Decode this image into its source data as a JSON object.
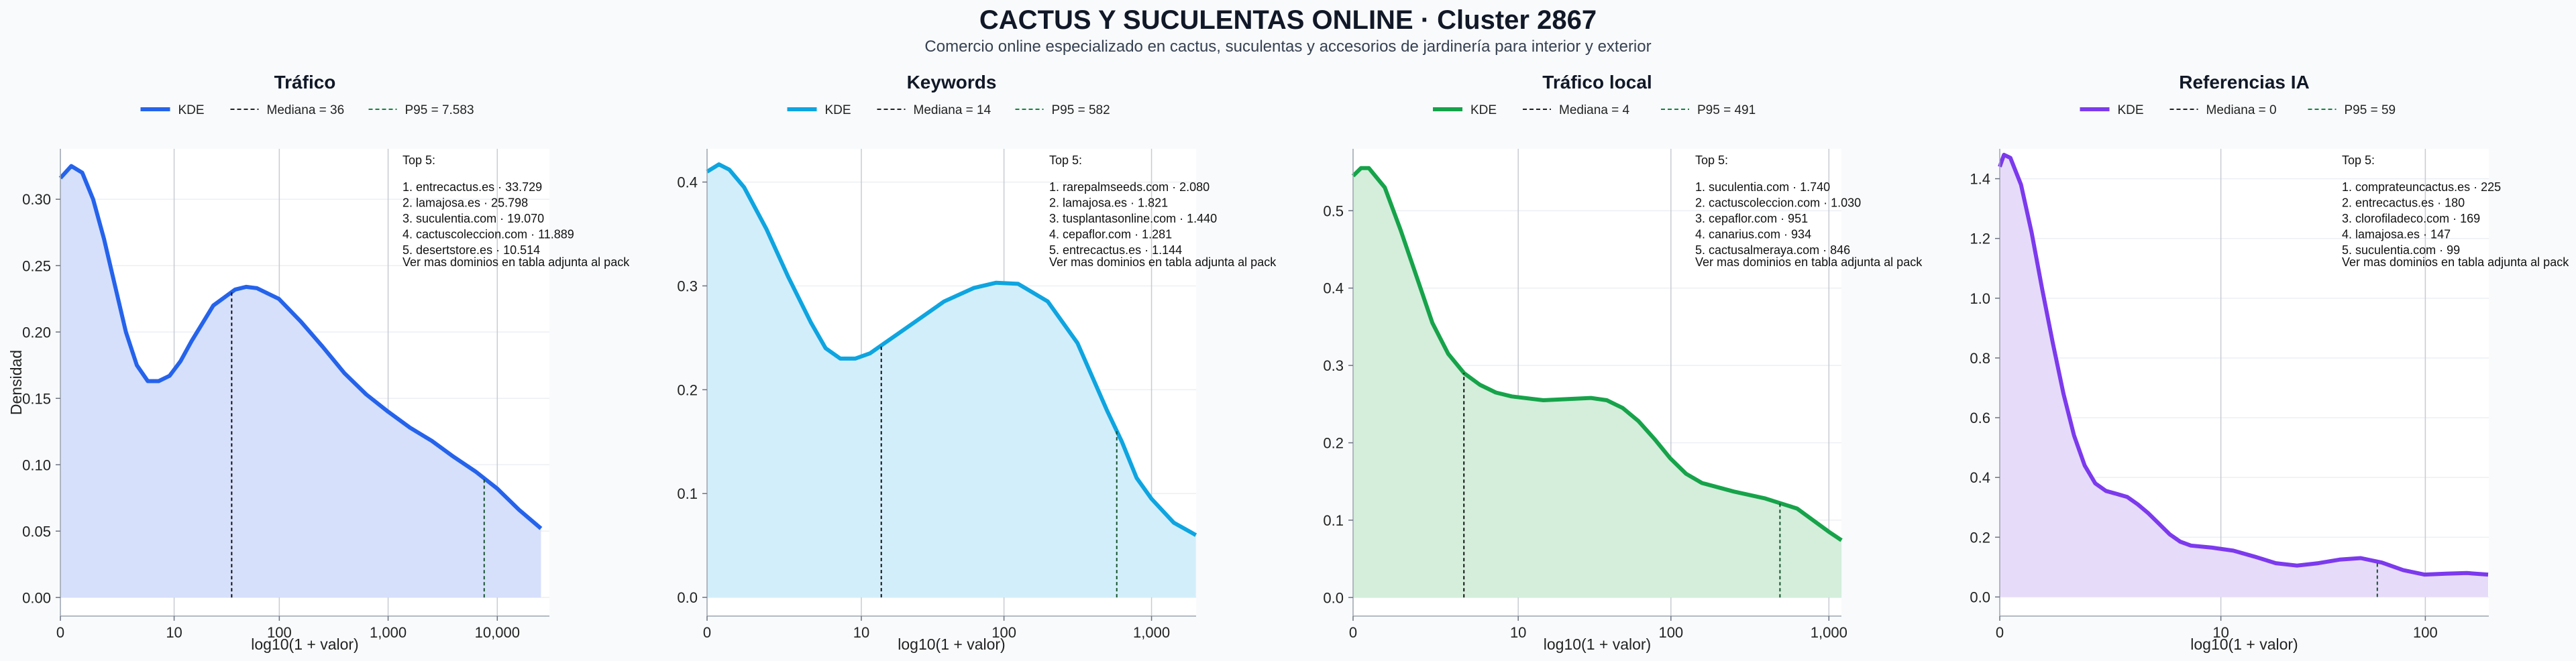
{
  "title": "CACTUS Y SUCULENTAS ONLINE · Cluster 2867",
  "subtitle": "Comercio online especializado en cactus, suculentas y accesorios de jardinería para interior y exterior",
  "y_axis_label": "Densidad",
  "chart_data": [
    {
      "type": "area",
      "title": "Tráfico",
      "xlabel": "log10(1 + valor)",
      "ylabel": "Densidad",
      "color": "#2563eb",
      "fill": "#d6e0fb",
      "legend": {
        "kde": "KDE",
        "median": "Mediana = 36",
        "p95": "P95 = 7.583"
      },
      "median_x": 36,
      "p95_x": 7583,
      "xmax": 30000,
      "x_ticks": [
        {
          "v": 0,
          "label": "0"
        },
        {
          "v": 10,
          "label": "10"
        },
        {
          "v": 100,
          "label": "100"
        },
        {
          "v": 1000,
          "label": "1,000"
        },
        {
          "v": 10000,
          "label": "10,000"
        }
      ],
      "ylim": [
        -0.014,
        0.338
      ],
      "y_ticks": [
        0,
        0.05,
        0.1,
        0.15,
        0.2,
        0.25,
        0.3
      ],
      "y_tick_labels": [
        "0.00",
        "0.05",
        "0.10",
        "0.15",
        "0.20",
        "0.25",
        "0.30"
      ],
      "points": [
        [
          0,
          0.316
        ],
        [
          0.1,
          0.325
        ],
        [
          0.2,
          0.32
        ],
        [
          0.3,
          0.3
        ],
        [
          0.4,
          0.27
        ],
        [
          0.5,
          0.235
        ],
        [
          0.6,
          0.2
        ],
        [
          0.7,
          0.175
        ],
        [
          0.8,
          0.163
        ],
        [
          0.9,
          0.163
        ],
        [
          1.0,
          0.167
        ],
        [
          1.1,
          0.178
        ],
        [
          1.2,
          0.193
        ],
        [
          1.4,
          0.22
        ],
        [
          1.6,
          0.232
        ],
        [
          1.7,
          0.234
        ],
        [
          1.8,
          0.233
        ],
        [
          2.0,
          0.225
        ],
        [
          2.2,
          0.208
        ],
        [
          2.4,
          0.189
        ],
        [
          2.6,
          0.169
        ],
        [
          2.8,
          0.153
        ],
        [
          3.0,
          0.14
        ],
        [
          3.2,
          0.128
        ],
        [
          3.4,
          0.118
        ],
        [
          3.6,
          0.106
        ],
        [
          3.8,
          0.095
        ],
        [
          4.0,
          0.082
        ],
        [
          4.2,
          0.066
        ],
        [
          4.4,
          0.052
        ]
      ],
      "top5_heading": "Top 5:",
      "top5": [
        "1. entrecactus.es · 33.729",
        "2. lamajosa.es · 25.798",
        "3. suculentia.com · 19.070",
        "4. cactuscoleccion.com · 11.889",
        "5. desertstore.es · 10.514"
      ],
      "note": "Ver mas dominios en tabla adjunta al pack"
    },
    {
      "type": "area",
      "title": "Keywords",
      "xlabel": "log10(1 + valor)",
      "ylabel": "",
      "color": "#0ea5e0",
      "fill": "#d3eefb",
      "legend": {
        "kde": "KDE",
        "median": "Mediana = 14",
        "p95": "P95 = 582"
      },
      "median_x": 14,
      "p95_x": 582,
      "xmax": 2000,
      "x_ticks": [
        {
          "v": 0,
          "label": "0"
        },
        {
          "v": 10,
          "label": "10"
        },
        {
          "v": 100,
          "label": "100"
        },
        {
          "v": 1000,
          "label": "1,000"
        }
      ],
      "ylim": [
        -0.018,
        0.432
      ],
      "y_ticks": [
        0,
        0.1,
        0.2,
        0.3,
        0.4
      ],
      "y_tick_labels": [
        "0.0",
        "0.1",
        "0.2",
        "0.3",
        "0.4"
      ],
      "points": [
        [
          0,
          0.41
        ],
        [
          0.08,
          0.417
        ],
        [
          0.15,
          0.412
        ],
        [
          0.25,
          0.395
        ],
        [
          0.4,
          0.355
        ],
        [
          0.55,
          0.308
        ],
        [
          0.7,
          0.265
        ],
        [
          0.8,
          0.24
        ],
        [
          0.9,
          0.23
        ],
        [
          1.0,
          0.23
        ],
        [
          1.1,
          0.235
        ],
        [
          1.2,
          0.245
        ],
        [
          1.4,
          0.265
        ],
        [
          1.6,
          0.285
        ],
        [
          1.8,
          0.298
        ],
        [
          1.95,
          0.303
        ],
        [
          2.1,
          0.302
        ],
        [
          2.3,
          0.285
        ],
        [
          2.5,
          0.245
        ],
        [
          2.7,
          0.18
        ],
        [
          2.8,
          0.15
        ],
        [
          2.9,
          0.115
        ],
        [
          3.0,
          0.095
        ],
        [
          3.15,
          0.072
        ],
        [
          3.3,
          0.06
        ]
      ],
      "top5_heading": "Top 5:",
      "top5": [
        "1. rarepalmseeds.com · 2.080",
        "2. lamajosa.es · 1.821",
        "3. tusplantasonline.com · 1.440",
        "4. cepaflor.com · 1.281",
        "5. entrecactus.es · 1.144"
      ],
      "note": "Ver mas dominios en tabla adjunta al pack"
    },
    {
      "type": "area",
      "title": "Tráfico local",
      "xlabel": "log10(1 + valor)",
      "ylabel": "",
      "color": "#16a34a",
      "fill": "#d4eedb",
      "legend": {
        "kde": "KDE",
        "median": "Mediana = 4",
        "p95": "P95 = 491"
      },
      "median_x": 4,
      "p95_x": 491,
      "xmax": 1200,
      "x_ticks": [
        {
          "v": 0,
          "label": "0"
        },
        {
          "v": 10,
          "label": "10"
        },
        {
          "v": 100,
          "label": "100"
        },
        {
          "v": 1000,
          "label": "1,000"
        }
      ],
      "ylim": [
        -0.024,
        0.58
      ],
      "y_ticks": [
        0,
        0.1,
        0.2,
        0.3,
        0.4,
        0.5
      ],
      "y_tick_labels": [
        "0.0",
        "0.1",
        "0.2",
        "0.3",
        "0.4",
        "0.5"
      ],
      "points": [
        [
          0,
          0.545
        ],
        [
          0.05,
          0.555
        ],
        [
          0.1,
          0.555
        ],
        [
          0.2,
          0.53
        ],
        [
          0.3,
          0.475
        ],
        [
          0.4,
          0.415
        ],
        [
          0.5,
          0.355
        ],
        [
          0.6,
          0.315
        ],
        [
          0.7,
          0.29
        ],
        [
          0.8,
          0.275
        ],
        [
          0.9,
          0.265
        ],
        [
          1.0,
          0.26
        ],
        [
          1.2,
          0.255
        ],
        [
          1.4,
          0.257
        ],
        [
          1.5,
          0.258
        ],
        [
          1.6,
          0.255
        ],
        [
          1.7,
          0.245
        ],
        [
          1.8,
          0.228
        ],
        [
          1.9,
          0.205
        ],
        [
          2.0,
          0.18
        ],
        [
          2.1,
          0.16
        ],
        [
          2.2,
          0.148
        ],
        [
          2.4,
          0.137
        ],
        [
          2.6,
          0.128
        ],
        [
          2.8,
          0.115
        ],
        [
          2.9,
          0.1
        ],
        [
          3.0,
          0.085
        ],
        [
          3.08,
          0.074
        ]
      ],
      "top5_heading": "Top 5:",
      "top5": [
        "1. suculentia.com · 1.740",
        "2. cactuscoleccion.com · 1.030",
        "3. cepaflor.com · 951",
        "4. canarius.com · 934",
        "5. cactusalmeraya.com · 846"
      ],
      "note": "Ver mas dominios en tabla adjunta al pack"
    },
    {
      "type": "area",
      "title": "Referencias IA",
      "xlabel": "log10(1 + valor)",
      "ylabel": "",
      "color": "#7c3aed",
      "fill": "#e7dbfa",
      "legend": {
        "kde": "KDE",
        "median": "Mediana = 0",
        "p95": "P95 = 59"
      },
      "median_x": 0,
      "p95_x": 59,
      "xmax": 200,
      "x_ticks": [
        {
          "v": 0,
          "label": "0"
        },
        {
          "v": 10,
          "label": "10"
        },
        {
          "v": 100,
          "label": "100"
        }
      ],
      "ylim": [
        -0.064,
        1.5
      ],
      "y_ticks": [
        0,
        0.2,
        0.4,
        0.6,
        0.8,
        1.0,
        1.2,
        1.4
      ],
      "y_tick_labels": [
        "0.0",
        "0.2",
        "0.4",
        "0.6",
        "0.8",
        "1.0",
        "1.2",
        "1.4"
      ],
      "points": [
        [
          0,
          1.44
        ],
        [
          0.02,
          1.48
        ],
        [
          0.05,
          1.47
        ],
        [
          0.1,
          1.38
        ],
        [
          0.15,
          1.22
        ],
        [
          0.2,
          1.03
        ],
        [
          0.25,
          0.85
        ],
        [
          0.3,
          0.68
        ],
        [
          0.35,
          0.54
        ],
        [
          0.4,
          0.44
        ],
        [
          0.45,
          0.38
        ],
        [
          0.5,
          0.355
        ],
        [
          0.55,
          0.345
        ],
        [
          0.6,
          0.335
        ],
        [
          0.65,
          0.31
        ],
        [
          0.7,
          0.28
        ],
        [
          0.75,
          0.245
        ],
        [
          0.8,
          0.21
        ],
        [
          0.85,
          0.185
        ],
        [
          0.9,
          0.172
        ],
        [
          1.0,
          0.165
        ],
        [
          1.1,
          0.155
        ],
        [
          1.2,
          0.135
        ],
        [
          1.3,
          0.113
        ],
        [
          1.4,
          0.105
        ],
        [
          1.5,
          0.113
        ],
        [
          1.6,
          0.125
        ],
        [
          1.7,
          0.13
        ],
        [
          1.8,
          0.115
        ],
        [
          1.9,
          0.09
        ],
        [
          2.0,
          0.075
        ],
        [
          2.1,
          0.078
        ],
        [
          2.2,
          0.08
        ],
        [
          2.3,
          0.075
        ]
      ],
      "top5_heading": "Top 5:",
      "top5": [
        "1. comprateuncactus.es · 225",
        "2. entrecactus.es · 180",
        "3. clorofiladeco.com · 169",
        "4. lamajosa.es · 147",
        "5. suculentia.com · 99"
      ],
      "note": "Ver mas dominios en tabla adjunta al pack"
    }
  ]
}
